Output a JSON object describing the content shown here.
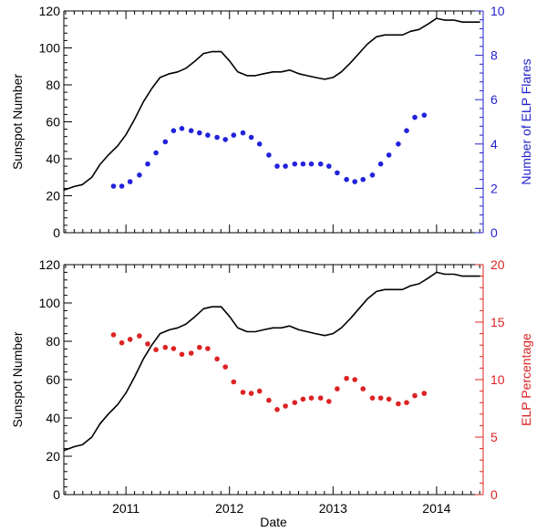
{
  "chart_data": [
    {
      "type": "line",
      "title": "",
      "xlabel": "",
      "ylabel": "Sunspot Number",
      "y2label": "Number of ELP Flares",
      "xlim": [
        2010.4,
        2014.45
      ],
      "ylim": [
        0,
        120
      ],
      "y2lim": [
        0,
        10
      ],
      "x_ticks": [
        2011,
        2012,
        2013,
        2014
      ],
      "x_tick_labels": [
        "",
        "",
        "",
        ""
      ],
      "y_ticks": [
        0,
        20,
        40,
        60,
        80,
        100,
        120
      ],
      "y2_ticks": [
        0,
        2,
        4,
        6,
        8,
        10
      ],
      "left_axis_color": "#000000",
      "right_axis_color": "#2222cc",
      "grid": false,
      "series": [
        {
          "axis": "left",
          "style": "line",
          "color": "#000000",
          "x": [
            2010.4,
            2010.5,
            2010.58,
            2010.67,
            2010.75,
            2010.83,
            2010.92,
            2011.0,
            2011.08,
            2011.17,
            2011.25,
            2011.33,
            2011.42,
            2011.5,
            2011.58,
            2011.67,
            2011.75,
            2011.83,
            2011.92,
            2012.0,
            2012.08,
            2012.17,
            2012.25,
            2012.33,
            2012.42,
            2012.5,
            2012.58,
            2012.67,
            2012.75,
            2012.83,
            2012.92,
            2013.0,
            2013.08,
            2013.17,
            2013.25,
            2013.33,
            2013.42,
            2013.5,
            2013.58,
            2013.67,
            2013.75,
            2013.83,
            2013.92,
            2014.0,
            2014.08,
            2014.17,
            2014.25,
            2014.33,
            2014.42
          ],
          "y": [
            23,
            25,
            26,
            30,
            37,
            42,
            47,
            53,
            61,
            71,
            78,
            84,
            86,
            87,
            89,
            93,
            97,
            98,
            98,
            93,
            87,
            85,
            85,
            86,
            87,
            87,
            88,
            86,
            85,
            84,
            83,
            84,
            87,
            92,
            97,
            102,
            106,
            107,
            107,
            107,
            109,
            110,
            113,
            116,
            115,
            115,
            114,
            114,
            114
          ]
        },
        {
          "axis": "right",
          "style": "points",
          "color": "#2222dd",
          "x": [
            2010.88,
            2010.96,
            2011.04,
            2011.13,
            2011.21,
            2011.29,
            2011.38,
            2011.46,
            2011.54,
            2011.63,
            2011.71,
            2011.79,
            2011.88,
            2011.96,
            2012.04,
            2012.13,
            2012.21,
            2012.29,
            2012.38,
            2012.46,
            2012.54,
            2012.63,
            2012.71,
            2012.79,
            2012.88,
            2012.96,
            2013.04,
            2013.13,
            2013.21,
            2013.29,
            2013.38,
            2013.46,
            2013.54,
            2013.63,
            2013.71,
            2013.79,
            2013.88
          ],
          "y": [
            2.1,
            2.1,
            2.3,
            2.6,
            3.1,
            3.6,
            4.1,
            4.6,
            4.7,
            4.6,
            4.5,
            4.4,
            4.3,
            4.2,
            4.4,
            4.5,
            4.3,
            4.0,
            3.5,
            3.0,
            3.0,
            3.1,
            3.1,
            3.1,
            3.1,
            3.0,
            2.7,
            2.4,
            2.3,
            2.4,
            2.6,
            3.1,
            3.5,
            4.0,
            4.6,
            5.2,
            5.3
          ]
        }
      ]
    },
    {
      "type": "line",
      "title": "",
      "xlabel": "Date",
      "ylabel": "Sunspot Number",
      "y2label": "ELP Percentage",
      "xlim": [
        2010.4,
        2014.45
      ],
      "ylim": [
        0,
        120
      ],
      "y2lim": [
        0,
        20
      ],
      "x_ticks": [
        2011,
        2012,
        2013,
        2014
      ],
      "x_tick_labels": [
        "2011",
        "2012",
        "2013",
        "2014"
      ],
      "y_ticks": [
        0,
        20,
        40,
        60,
        80,
        100,
        120
      ],
      "y2_ticks": [
        0,
        5,
        10,
        15,
        20
      ],
      "left_axis_color": "#000000",
      "right_axis_color": "#dd2222",
      "grid": false,
      "series": [
        {
          "axis": "left",
          "style": "line",
          "color": "#000000",
          "x": [
            2010.4,
            2010.5,
            2010.58,
            2010.67,
            2010.75,
            2010.83,
            2010.92,
            2011.0,
            2011.08,
            2011.17,
            2011.25,
            2011.33,
            2011.42,
            2011.5,
            2011.58,
            2011.67,
            2011.75,
            2011.83,
            2011.92,
            2012.0,
            2012.08,
            2012.17,
            2012.25,
            2012.33,
            2012.42,
            2012.5,
            2012.58,
            2012.67,
            2012.75,
            2012.83,
            2012.92,
            2013.0,
            2013.08,
            2013.17,
            2013.25,
            2013.33,
            2013.42,
            2013.5,
            2013.58,
            2013.67,
            2013.75,
            2013.83,
            2013.92,
            2014.0,
            2014.08,
            2014.17,
            2014.25,
            2014.33,
            2014.42
          ],
          "y": [
            23,
            25,
            26,
            30,
            37,
            42,
            47,
            53,
            61,
            71,
            78,
            84,
            86,
            87,
            89,
            93,
            97,
            98,
            98,
            93,
            87,
            85,
            85,
            86,
            87,
            87,
            88,
            86,
            85,
            84,
            83,
            84,
            87,
            92,
            97,
            102,
            106,
            107,
            107,
            107,
            109,
            110,
            113,
            116,
            115,
            115,
            114,
            114,
            114
          ]
        },
        {
          "axis": "right",
          "style": "points",
          "color": "#dd2222",
          "x": [
            2010.88,
            2010.96,
            2011.04,
            2011.13,
            2011.21,
            2011.29,
            2011.38,
            2011.46,
            2011.54,
            2011.63,
            2011.71,
            2011.79,
            2011.88,
            2011.96,
            2012.04,
            2012.13,
            2012.21,
            2012.29,
            2012.38,
            2012.46,
            2012.54,
            2012.63,
            2012.71,
            2012.79,
            2012.88,
            2012.96,
            2013.04,
            2013.13,
            2013.21,
            2013.29,
            2013.38,
            2013.46,
            2013.54,
            2013.63,
            2013.71,
            2013.79,
            2013.88
          ],
          "y": [
            13.9,
            13.2,
            13.5,
            13.8,
            13.1,
            12.6,
            12.8,
            12.7,
            12.2,
            12.3,
            12.8,
            12.7,
            11.8,
            11.1,
            9.8,
            8.9,
            8.8,
            9.0,
            8.2,
            7.4,
            7.7,
            8.0,
            8.3,
            8.4,
            8.4,
            8.1,
            9.2,
            10.1,
            10.0,
            9.2,
            8.4,
            8.4,
            8.3,
            7.9,
            8.0,
            8.6,
            8.8
          ]
        }
      ]
    }
  ]
}
